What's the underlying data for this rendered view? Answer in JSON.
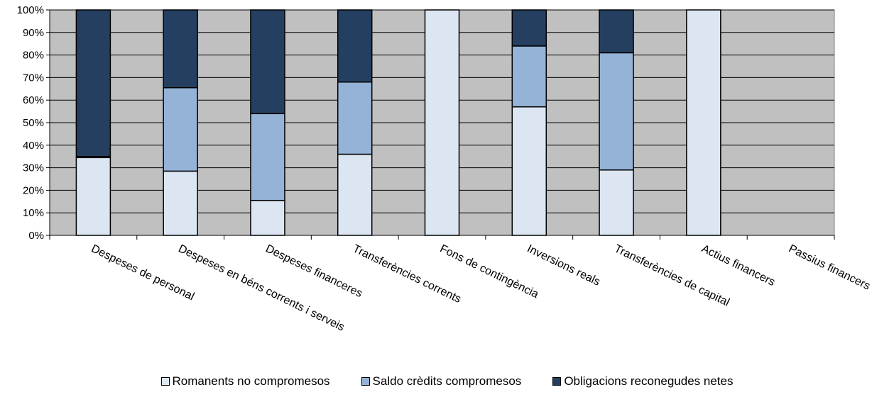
{
  "chart_data": {
    "type": "bar",
    "stacked": true,
    "percent": true,
    "categories": [
      "Despeses de personal",
      "Despeses en béns corrents i serveis",
      "Despeses financeres",
      "Transferències corrents",
      "Fons de contingència",
      "Inversions reals",
      "Transferències de capital",
      "Actius financers",
      "Passius financers"
    ],
    "series": [
      {
        "name": "Romanents no compromesos",
        "color": "#dce6f2",
        "values": [
          34.5,
          28.5,
          15.5,
          36,
          100,
          57,
          29,
          100,
          0
        ]
      },
      {
        "name": "Saldo crèdits compromesos",
        "color": "#95b3d7",
        "values": [
          0.5,
          37,
          38.5,
          32,
          0,
          27,
          52,
          0,
          0
        ]
      },
      {
        "name": "Obligacions reconegudes netes",
        "color": "#243f60",
        "values": [
          65,
          34.5,
          46,
          32,
          0,
          16,
          19,
          0,
          0
        ]
      }
    ],
    "yticks": [
      "0%",
      "10%",
      "20%",
      "30%",
      "40%",
      "50%",
      "60%",
      "70%",
      "80%",
      "90%",
      "100%"
    ],
    "ylim": [
      0,
      100
    ],
    "grid": true,
    "plot_background": "#c0c0c0",
    "legend_position": "bottom",
    "title": "",
    "xlabel": "",
    "ylabel": ""
  }
}
